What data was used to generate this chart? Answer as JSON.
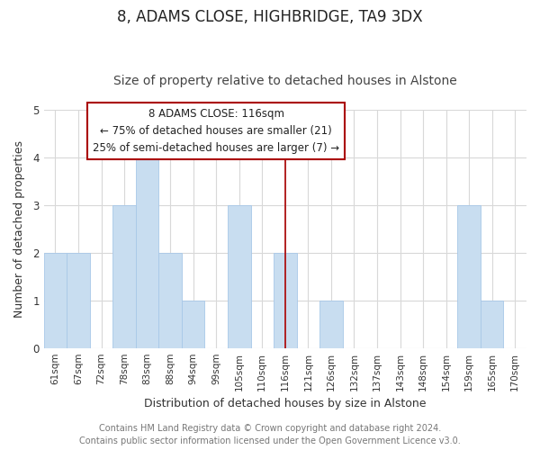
{
  "title": "8, ADAMS CLOSE, HIGHBRIDGE, TA9 3DX",
  "subtitle": "Size of property relative to detached houses in Alstone",
  "xlabel": "Distribution of detached houses by size in Alstone",
  "ylabel": "Number of detached properties",
  "bins": [
    "61sqm",
    "67sqm",
    "72sqm",
    "78sqm",
    "83sqm",
    "88sqm",
    "94sqm",
    "99sqm",
    "105sqm",
    "110sqm",
    "116sqm",
    "121sqm",
    "126sqm",
    "132sqm",
    "137sqm",
    "143sqm",
    "148sqm",
    "154sqm",
    "159sqm",
    "165sqm",
    "170sqm"
  ],
  "values": [
    2,
    2,
    0,
    3,
    4,
    2,
    1,
    0,
    3,
    0,
    2,
    0,
    1,
    0,
    0,
    0,
    0,
    0,
    3,
    1,
    0
  ],
  "highlight_bin_index": 10,
  "bar_color": "#c8ddf0",
  "bar_edge_color": "#a8c8e8",
  "highlight_edge_color": "#aa0000",
  "grid_color": "#d8d8d8",
  "ylim": [
    0,
    5
  ],
  "annotation_title": "8 ADAMS CLOSE: 116sqm",
  "annotation_line1": "← 75% of detached houses are smaller (21)",
  "annotation_line2": "25% of semi-detached houses are larger (7) →",
  "footer_line1": "Contains HM Land Registry data © Crown copyright and database right 2024.",
  "footer_line2": "Contains public sector information licensed under the Open Government Licence v3.0.",
  "title_fontsize": 12,
  "subtitle_fontsize": 10,
  "axis_label_fontsize": 9,
  "tick_fontsize": 7.5,
  "annotation_fontsize": 8.5,
  "footer_fontsize": 7
}
